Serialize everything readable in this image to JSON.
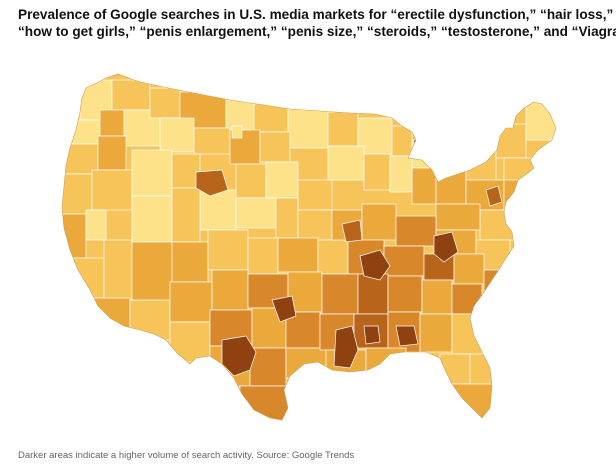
{
  "title_lines": [
    "Prevalence of Google searches in U.S. media markets for “erectile dysfunction,” “hair loss,”",
    "“how to get girls,” “penis enlargement,” “penis size,” “steroids,” “testosterone,” and “Viagra.”"
  ],
  "caption": "Darker areas indicate a higher volume of search activity. Source: Google Trends",
  "colors": {
    "background": "#ffffff",
    "border": "#ffffff",
    "level_1": "#fde28a",
    "level_2": "#f7c45a",
    "level_3": "#eba83b",
    "level_4": "#d8872a",
    "level_5": "#b8641b",
    "level_6": "#8f4210",
    "level_7": "#5e2406"
  }
}
